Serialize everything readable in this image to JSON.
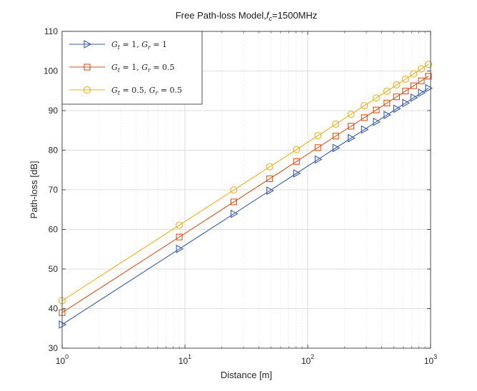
{
  "chart_data": {
    "type": "line",
    "title": "Free Path-loss Model,",
    "title_sub_main": "f",
    "title_sub_index": "c",
    "title_tail": "=1500MHz",
    "xlabel": "Distance [m]",
    "ylabel": "Path-loss [dB]",
    "x_scale": "log",
    "xlim": [
      1,
      1000
    ],
    "ylim": [
      30,
      110
    ],
    "x_ticks": [
      {
        "base": "10",
        "exp": "0"
      },
      {
        "base": "10",
        "exp": "1"
      },
      {
        "base": "10",
        "exp": "2"
      },
      {
        "base": "10",
        "exp": "3"
      }
    ],
    "y_ticks": [
      "30",
      "40",
      "50",
      "60",
      "70",
      "80",
      "90",
      "100",
      "110"
    ],
    "grid": "on",
    "legend_position": "top-left",
    "x": [
      1,
      9,
      25,
      49,
      81,
      121,
      169,
      225,
      289,
      361,
      441,
      529,
      625,
      729,
      841,
      961
    ],
    "series": [
      {
        "name": "Gt = 1, Gr = 1",
        "legend": {
          "g1": "G",
          "s1": "t",
          "eq1": " = 1, ",
          "g2": "G",
          "s2": "r",
          "eq2": " = 1"
        },
        "color": "#3a5ba8",
        "marker": "triangle-right",
        "values": [
          35.97,
          55.06,
          63.93,
          69.77,
          74.14,
          77.65,
          80.56,
          83.04,
          85.22,
          87.15,
          88.89,
          90.47,
          91.92,
          93.26,
          94.5,
          95.66
        ]
      },
      {
        "name": "Gt = 1, Gr = 0.5",
        "legend": {
          "g1": "G",
          "s1": "t",
          "eq1": " = 1, ",
          "g2": "G",
          "s2": "r",
          "eq2": " = 0.5"
        },
        "color": "#d9541a",
        "marker": "square",
        "values": [
          38.98,
          58.07,
          66.94,
          72.78,
          77.15,
          80.66,
          83.57,
          86.05,
          88.23,
          90.16,
          91.9,
          93.48,
          94.93,
          96.27,
          97.51,
          98.67
        ]
      },
      {
        "name": "Gt = 0.5, Gr = 0.5",
        "legend": {
          "g1": "G",
          "s1": "t",
          "eq1": " = 0.5, ",
          "g2": "G",
          "s2": "r",
          "eq2": " = 0.5"
        },
        "color": "#edb120",
        "marker": "circle",
        "values": [
          41.99,
          61.08,
          69.95,
          75.79,
          80.16,
          83.67,
          86.58,
          89.06,
          91.24,
          93.17,
          94.91,
          96.49,
          97.94,
          99.28,
          100.52,
          101.68
        ]
      }
    ]
  }
}
